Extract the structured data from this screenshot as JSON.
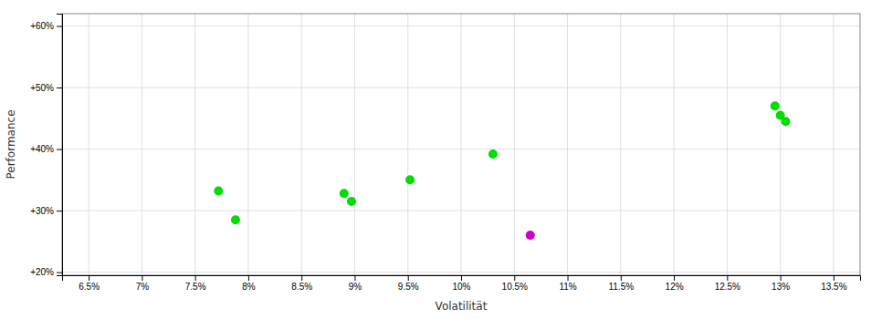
{
  "chart_data": {
    "type": "scatter",
    "x_label": "Volatilität",
    "y_label": "Performance",
    "x": [
      7.72,
      7.88,
      8.9,
      8.97,
      9.52,
      10.3,
      10.65,
      12.95,
      13.0,
      13.05
    ],
    "values": [
      33.2,
      28.5,
      32.8,
      31.5,
      35.0,
      39.2,
      26.0,
      47.0,
      45.5,
      44.5
    ],
    "colors": [
      "#00dd00",
      "#00dd00",
      "#00dd00",
      "#00dd00",
      "#00dd00",
      "#00dd00",
      "#cc00cc",
      "#00dd00",
      "#00dd00",
      "#00dd00"
    ],
    "xlim": [
      6.25,
      13.75
    ],
    "ylim": [
      19.5,
      62.0
    ],
    "xticks": [
      {
        "value": 6.5,
        "label": "6.5%"
      },
      {
        "value": 7.0,
        "label": "7%"
      },
      {
        "value": 7.5,
        "label": "7.5%"
      },
      {
        "value": 8.0,
        "label": "8%"
      },
      {
        "value": 8.5,
        "label": "8.5%"
      },
      {
        "value": 9.0,
        "label": "9%"
      },
      {
        "value": 9.5,
        "label": "9.5%"
      },
      {
        "value": 10.0,
        "label": "10%"
      },
      {
        "value": 10.5,
        "label": "10.5%"
      },
      {
        "value": 11.0,
        "label": "11%"
      },
      {
        "value": 11.5,
        "label": "11.5%"
      },
      {
        "value": 12.0,
        "label": "12%"
      },
      {
        "value": 12.5,
        "label": "12.5%"
      },
      {
        "value": 13.0,
        "label": "13%"
      },
      {
        "value": 13.5,
        "label": "13.5%"
      }
    ],
    "yticks": [
      {
        "value": 20,
        "label": "+20%"
      },
      {
        "value": 30,
        "label": "+30%"
      },
      {
        "value": 40,
        "label": "+40%"
      },
      {
        "value": 50,
        "label": "+50%"
      },
      {
        "value": 60,
        "label": "+60%"
      }
    ],
    "grid": true
  }
}
